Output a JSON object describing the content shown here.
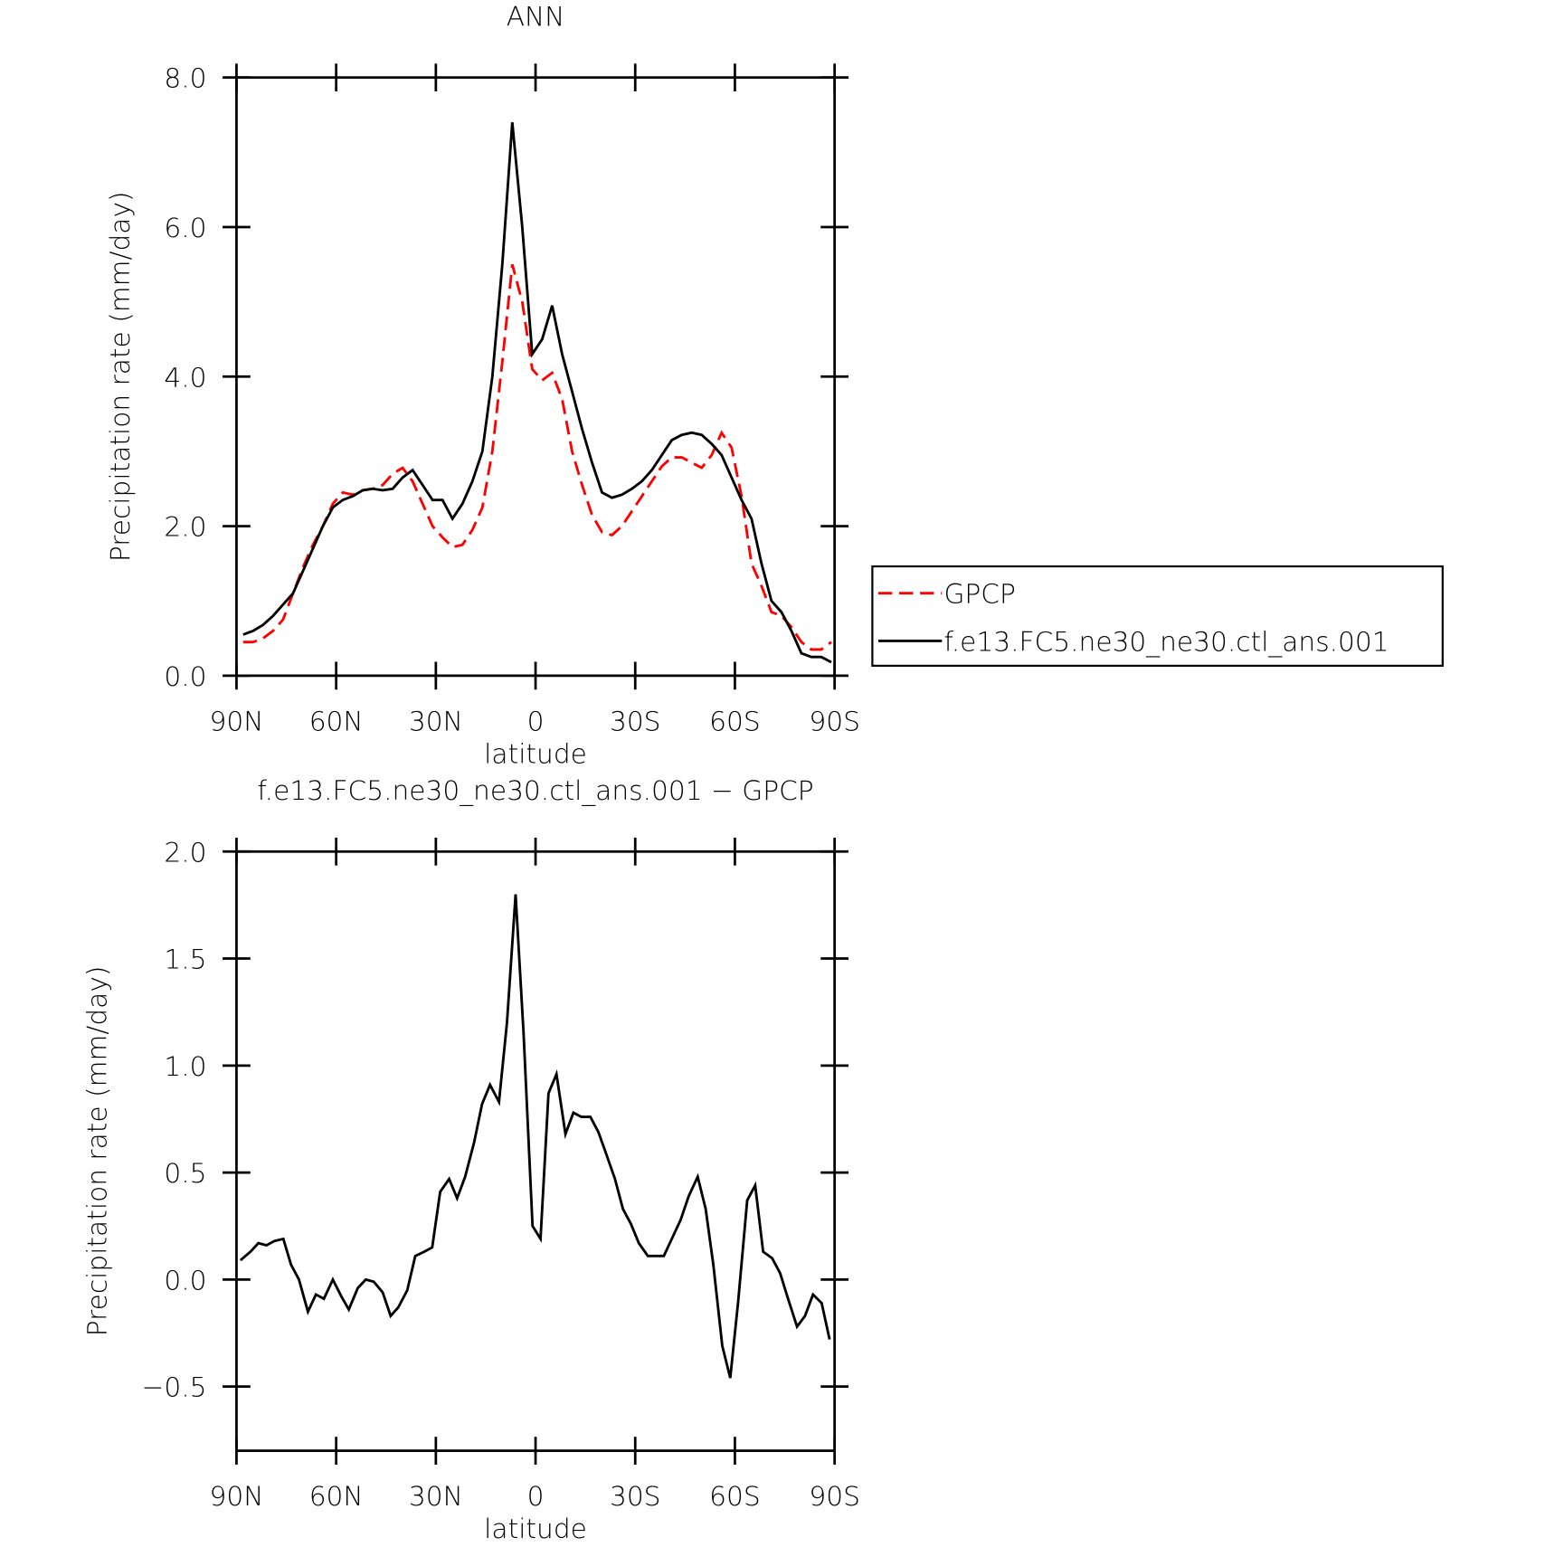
{
  "chart_data": [
    {
      "type": "line",
      "title": "ANN",
      "xlabel": "latitude",
      "ylabel": "Precipitation rate (mm/day)",
      "x": [
        88,
        85,
        82,
        79,
        76,
        73,
        70,
        67,
        64,
        61,
        58,
        55,
        52,
        49,
        46,
        43,
        40,
        37,
        34,
        31,
        28,
        25,
        22,
        19,
        16,
        13,
        10,
        7,
        4,
        1,
        -2,
        -5,
        -8,
        -11,
        -14,
        -17,
        -20,
        -23,
        -26,
        -29,
        -32,
        -35,
        -38,
        -41,
        -44,
        -47,
        -50,
        -53,
        -56,
        -59,
        -62,
        -65,
        -68,
        -71,
        -74,
        -77,
        -80,
        -83,
        -86,
        -89
      ],
      "series": [
        {
          "name": "GPCP",
          "color": "#ff0000",
          "linestyle": "dashed",
          "values": [
            0.45,
            0.45,
            0.5,
            0.6,
            0.75,
            1.1,
            1.45,
            1.75,
            2.0,
            2.3,
            2.45,
            2.42,
            2.48,
            2.5,
            2.55,
            2.7,
            2.78,
            2.6,
            2.3,
            2.0,
            1.85,
            1.72,
            1.75,
            1.95,
            2.25,
            3.0,
            4.2,
            5.5,
            5.0,
            4.1,
            3.95,
            4.05,
            3.7,
            3.0,
            2.55,
            2.15,
            1.92,
            1.88,
            2.0,
            2.2,
            2.4,
            2.6,
            2.8,
            2.92,
            2.92,
            2.85,
            2.78,
            2.95,
            3.25,
            3.05,
            2.4,
            1.5,
            1.2,
            0.85,
            0.8,
            0.65,
            0.45,
            0.35,
            0.35,
            0.45
          ]
        },
        {
          "name": "f.e13.FC5.ne30_ne30.ctl_ans.001",
          "color": "#000000",
          "linestyle": "solid",
          "values": [
            0.55,
            0.6,
            0.68,
            0.8,
            0.95,
            1.1,
            1.4,
            1.7,
            2.0,
            2.25,
            2.35,
            2.4,
            2.48,
            2.5,
            2.48,
            2.5,
            2.65,
            2.75,
            2.55,
            2.35,
            2.35,
            2.1,
            2.3,
            2.6,
            3.0,
            4.0,
            5.5,
            7.4,
            6.0,
            4.3,
            4.5,
            4.95,
            4.3,
            3.8,
            3.3,
            2.85,
            2.45,
            2.38,
            2.42,
            2.5,
            2.6,
            2.75,
            2.95,
            3.15,
            3.22,
            3.25,
            3.22,
            3.1,
            2.95,
            2.65,
            2.35,
            2.1,
            1.5,
            1.0,
            0.85,
            0.6,
            0.3,
            0.25,
            0.25,
            0.18
          ]
        }
      ],
      "xlim": [
        90,
        -90
      ],
      "xticks": [
        {
          "value": 90,
          "label": "90N"
        },
        {
          "value": 60,
          "label": "60N"
        },
        {
          "value": 30,
          "label": "30N"
        },
        0,
        {
          "value": -30,
          "label": "30S"
        },
        {
          "value": -60,
          "label": "60S"
        },
        {
          "value": -90,
          "label": "90S"
        }
      ],
      "ylim": [
        0,
        8
      ],
      "yticks": [
        {
          "value": 0,
          "label": "0.0"
        },
        {
          "value": 2,
          "label": "2.0"
        },
        {
          "value": 4,
          "label": "4.0"
        },
        {
          "value": 6,
          "label": "6.0"
        },
        {
          "value": 8,
          "label": "8.0"
        }
      ],
      "legend": "right"
    },
    {
      "type": "line",
      "title": "f.e13.FC5.ne30_ne30.ctl_ans.001 − GPCP",
      "xlabel": "latitude",
      "ylabel": "Precipitation rate (mm/day)",
      "x": [
        88.8,
        85.8,
        83.4,
        81,
        78.6,
        75.9,
        73.6,
        71.2,
        68.5,
        66.1,
        63.7,
        61,
        58.4,
        56.2,
        53.5,
        51.1,
        48.7,
        46,
        43.6,
        41.3,
        38.6,
        36.2,
        33.5,
        31.1,
        28.7,
        26,
        23.6,
        21.2,
        18.5,
        16.1,
        13.7,
        11,
        8.6,
        6,
        3.6,
        0.9,
        -1.5,
        -3.9,
        -6.3,
        -9,
        -11.4,
        -13.8,
        -16.5,
        -18.9,
        -21.2,
        -23.9,
        -26.3,
        -28.7,
        -31.1,
        -33.8,
        -36.2,
        -38.6,
        -41.3,
        -43.7,
        -46.1,
        -48.8,
        -51.2,
        -53.5,
        -56.2,
        -58.6,
        -61,
        -63.7,
        -66.1,
        -68.5,
        -71.2,
        -73.6,
        -76,
        -78.7,
        -81.1,
        -83.5,
        -86.1,
        -88.5
      ],
      "series": [
        {
          "color": "#000000",
          "linestyle": "solid",
          "values": [
            0.09,
            0.13,
            0.17,
            0.16,
            0.18,
            0.19,
            0.07,
            0.0,
            -0.15,
            -0.07,
            -0.09,
            0.0,
            -0.08,
            -0.14,
            -0.04,
            0.0,
            -0.01,
            -0.06,
            -0.17,
            -0.13,
            -0.05,
            0.11,
            0.13,
            0.15,
            0.41,
            0.47,
            0.38,
            0.48,
            0.64,
            0.82,
            0.91,
            0.83,
            1.2,
            1.8,
            1.15,
            0.25,
            0.19,
            0.87,
            0.96,
            0.68,
            0.78,
            0.76,
            0.76,
            0.69,
            0.59,
            0.47,
            0.33,
            0.26,
            0.17,
            0.11,
            0.11,
            0.11,
            0.2,
            0.28,
            0.39,
            0.48,
            0.33,
            0.07,
            -0.31,
            -0.46,
            -0.1,
            0.37,
            0.44,
            0.13,
            0.1,
            0.03,
            -0.09,
            -0.22,
            -0.17,
            -0.07,
            -0.11,
            -0.28
          ]
        }
      ],
      "xlim": [
        90,
        -90
      ],
      "xticks": [
        {
          "value": 90,
          "label": "90N"
        },
        {
          "value": 60,
          "label": "60N"
        },
        {
          "value": 30,
          "label": "30N"
        },
        0,
        {
          "value": -30,
          "label": "30S"
        },
        {
          "value": -60,
          "label": "60S"
        },
        {
          "value": -90,
          "label": "90S"
        }
      ],
      "ylim": [
        -0.8,
        2.0
      ],
      "yticks": [
        {
          "value": -0.5,
          "label": "−0.5"
        },
        {
          "value": 0,
          "label": "0.0"
        },
        0.5,
        {
          "value": 1,
          "label": "1.0"
        },
        1.5,
        {
          "value": 2,
          "label": "2.0"
        }
      ]
    }
  ]
}
